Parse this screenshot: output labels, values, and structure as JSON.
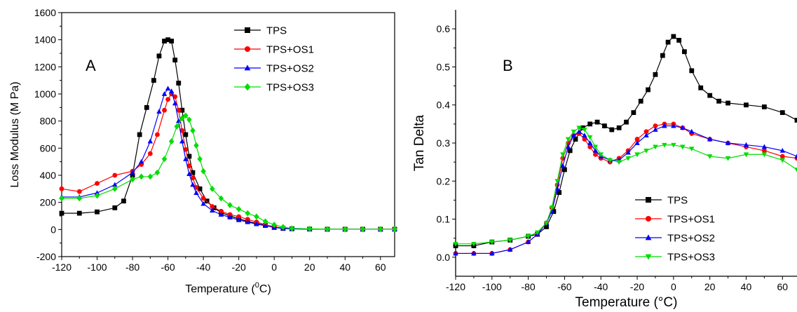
{
  "chart_data": [
    {
      "type": "line",
      "panel_label": "A",
      "xlabel": "Temperature (",
      "xlabel_sup": "0",
      "xlabel_tail": "C)",
      "ylabel": "Loss Modulus (M Pa)",
      "xlim": [
        -120,
        68
      ],
      "ylim": [
        -200,
        1600
      ],
      "xticks": [
        -120,
        -100,
        -80,
        -60,
        -40,
        -20,
        0,
        20,
        40,
        60
      ],
      "yticks": [
        -200,
        0,
        200,
        400,
        600,
        800,
        1000,
        1200,
        1400,
        1600
      ],
      "legend_position": "top-right",
      "series": [
        {
          "name": "TPS",
          "color": "#000000",
          "marker": "square",
          "x": [
            -120,
            -110,
            -100,
            -90,
            -85,
            -80,
            -76,
            -72,
            -68,
            -65,
            -62,
            -60,
            -58,
            -56,
            -54,
            -52,
            -50,
            -48,
            -46,
            -42,
            -38,
            -34,
            -30,
            -25,
            -20,
            -15,
            -10,
            -5,
            0,
            5,
            10,
            20,
            30,
            40,
            50,
            60,
            68
          ],
          "y": [
            120,
            120,
            130,
            160,
            210,
            400,
            700,
            900,
            1100,
            1280,
            1390,
            1400,
            1390,
            1250,
            1080,
            880,
            700,
            540,
            420,
            300,
            210,
            160,
            125,
            100,
            80,
            60,
            45,
            30,
            15,
            8,
            5,
            3,
            2,
            2,
            2,
            2,
            2
          ]
        },
        {
          "name": "TPS+OS1",
          "color": "#ff0000",
          "marker": "circle",
          "x": [
            -120,
            -110,
            -100,
            -90,
            -80,
            -75,
            -70,
            -66,
            -62,
            -60,
            -58,
            -56,
            -54,
            -52,
            -50,
            -48,
            -46,
            -44,
            -40,
            -35,
            -30,
            -25,
            -20,
            -15,
            -10,
            -5,
            0,
            5,
            10,
            20,
            30,
            40,
            50,
            60,
            68
          ],
          "y": [
            300,
            280,
            340,
            400,
            430,
            480,
            560,
            700,
            880,
            960,
            1000,
            980,
            880,
            730,
            590,
            470,
            380,
            310,
            230,
            170,
            135,
            110,
            95,
            75,
            55,
            35,
            20,
            10,
            5,
            3,
            2,
            2,
            2,
            2,
            2
          ]
        },
        {
          "name": "TPS+OS2",
          "color": "#0000ff",
          "marker": "triangle-up",
          "x": [
            -120,
            -110,
            -100,
            -90,
            -80,
            -75,
            -70,
            -65,
            -62,
            -60,
            -58,
            -56,
            -54,
            -52,
            -50,
            -48,
            -46,
            -44,
            -40,
            -35,
            -30,
            -25,
            -20,
            -15,
            -10,
            -5,
            0,
            5,
            10,
            20,
            30,
            40,
            50,
            60,
            68
          ],
          "y": [
            240,
            240,
            270,
            330,
            420,
            500,
            650,
            870,
            1000,
            1040,
            1020,
            930,
            800,
            650,
            520,
            410,
            330,
            270,
            190,
            140,
            110,
            90,
            70,
            55,
            40,
            28,
            15,
            8,
            5,
            3,
            2,
            2,
            2,
            2,
            2
          ]
        },
        {
          "name": "TPS+OS3",
          "color": "#00dd00",
          "marker": "diamond",
          "x": [
            -120,
            -110,
            -100,
            -90,
            -80,
            -75,
            -70,
            -66,
            -62,
            -58,
            -55,
            -52,
            -50,
            -48,
            -46,
            -44,
            -42,
            -40,
            -35,
            -30,
            -25,
            -20,
            -15,
            -10,
            -5,
            0,
            5,
            10,
            20,
            30,
            40,
            50,
            60,
            68
          ],
          "y": [
            230,
            230,
            250,
            300,
            370,
            390,
            390,
            420,
            520,
            650,
            760,
            820,
            840,
            810,
            730,
            620,
            520,
            430,
            300,
            230,
            180,
            150,
            120,
            95,
            60,
            35,
            18,
            8,
            5,
            3,
            2,
            2,
            2,
            2
          ]
        }
      ]
    },
    {
      "type": "line",
      "panel_label": "B",
      "xlabel": "Temperature (°C)",
      "ylabel": "Tan Delta",
      "xlim": [
        -120,
        68
      ],
      "ylim": [
        -0.05,
        0.65
      ],
      "xticks": [
        -120,
        -100,
        -80,
        -60,
        -40,
        -20,
        0,
        20,
        40,
        60
      ],
      "yticks": [
        0.0,
        0.1,
        0.2,
        0.3,
        0.4,
        0.5,
        0.6
      ],
      "yticklabels": [
        "0.0",
        "0.1",
        "0.2",
        "0.3",
        "0.4",
        "0.5",
        "0.6"
      ],
      "legend_position": "bottom-right",
      "series": [
        {
          "name": "TPS",
          "color": "#000000",
          "marker": "square",
          "x": [
            -120,
            -110,
            -100,
            -90,
            -80,
            -75,
            -70,
            -66,
            -63,
            -60,
            -57,
            -54,
            -50,
            -46,
            -42,
            -38,
            -34,
            -30,
            -26,
            -22,
            -18,
            -14,
            -10,
            -6,
            -3,
            0,
            3,
            6,
            10,
            15,
            20,
            25,
            30,
            40,
            50,
            60,
            68
          ],
          "y": [
            0.03,
            0.03,
            0.04,
            0.045,
            0.055,
            0.06,
            0.08,
            0.12,
            0.17,
            0.23,
            0.28,
            0.31,
            0.34,
            0.35,
            0.355,
            0.345,
            0.335,
            0.34,
            0.355,
            0.38,
            0.41,
            0.44,
            0.48,
            0.53,
            0.565,
            0.58,
            0.57,
            0.54,
            0.49,
            0.445,
            0.425,
            0.41,
            0.405,
            0.4,
            0.395,
            0.38,
            0.36
          ]
        },
        {
          "name": "TPS+OS1",
          "color": "#ff0000",
          "marker": "circle",
          "x": [
            -120,
            -110,
            -100,
            -90,
            -80,
            -75,
            -70,
            -67,
            -64,
            -61,
            -58,
            -55,
            -52,
            -49,
            -46,
            -43,
            -40,
            -35,
            -30,
            -25,
            -20,
            -15,
            -10,
            -5,
            0,
            5,
            10,
            20,
            30,
            40,
            50,
            60,
            68
          ],
          "y": [
            0.01,
            0.01,
            0.01,
            0.02,
            0.04,
            0.06,
            0.09,
            0.13,
            0.19,
            0.26,
            0.3,
            0.32,
            0.325,
            0.31,
            0.29,
            0.27,
            0.26,
            0.25,
            0.26,
            0.28,
            0.31,
            0.33,
            0.345,
            0.35,
            0.35,
            0.34,
            0.325,
            0.31,
            0.3,
            0.29,
            0.28,
            0.265,
            0.26
          ]
        },
        {
          "name": "TPS+OS2",
          "color": "#0000ff",
          "marker": "triangle-up",
          "x": [
            -120,
            -110,
            -100,
            -90,
            -80,
            -75,
            -70,
            -67,
            -64,
            -61,
            -58,
            -55,
            -52,
            -49,
            -46,
            -43,
            -40,
            -35,
            -30,
            -25,
            -20,
            -15,
            -10,
            -5,
            0,
            5,
            10,
            20,
            30,
            40,
            50,
            60,
            68
          ],
          "y": [
            0.01,
            0.01,
            0.01,
            0.02,
            0.04,
            0.06,
            0.09,
            0.12,
            0.18,
            0.24,
            0.29,
            0.32,
            0.33,
            0.32,
            0.3,
            0.28,
            0.265,
            0.255,
            0.255,
            0.275,
            0.3,
            0.32,
            0.335,
            0.345,
            0.345,
            0.34,
            0.33,
            0.31,
            0.3,
            0.295,
            0.29,
            0.28,
            0.265
          ]
        },
        {
          "name": "TPS+OS3",
          "color": "#00dd00",
          "marker": "triangle-down",
          "x": [
            -120,
            -110,
            -100,
            -90,
            -80,
            -75,
            -70,
            -67,
            -64,
            -61,
            -58,
            -55,
            -52,
            -49,
            -46,
            -43,
            -40,
            -35,
            -30,
            -25,
            -20,
            -15,
            -10,
            -5,
            0,
            5,
            10,
            20,
            30,
            40,
            50,
            60,
            68
          ],
          "y": [
            0.035,
            0.035,
            0.04,
            0.045,
            0.055,
            0.065,
            0.09,
            0.13,
            0.2,
            0.27,
            0.31,
            0.33,
            0.34,
            0.335,
            0.315,
            0.29,
            0.27,
            0.255,
            0.25,
            0.26,
            0.27,
            0.28,
            0.29,
            0.295,
            0.295,
            0.29,
            0.285,
            0.265,
            0.26,
            0.27,
            0.27,
            0.255,
            0.23
          ]
        }
      ]
    }
  ]
}
